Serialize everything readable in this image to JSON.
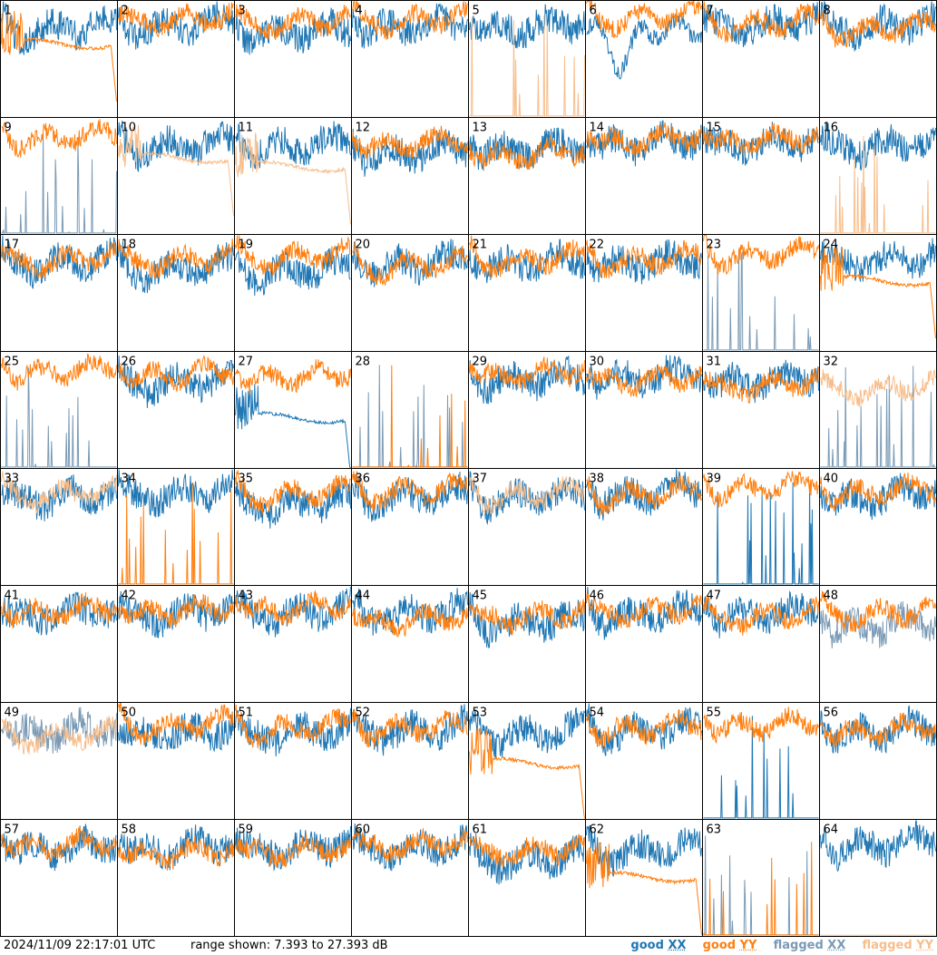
{
  "title": "",
  "footer": {
    "timestamp": "2024/11/09 22:17:01 UTC",
    "range_text": "range shown: 7.393 to 27.393 dB"
  },
  "legend": [
    {
      "status": "good",
      "pol": "XX",
      "color": "#1f77b4"
    },
    {
      "status": "good",
      "pol": "YY",
      "color": "#ff7f0e"
    },
    {
      "status": "flagged",
      "pol": "XX",
      "color": "#7a9ab5"
    },
    {
      "status": "flagged",
      "pol": "YY",
      "color": "#f7be8c"
    }
  ],
  "chart_data": {
    "type": "line",
    "layout": "8x8 small multiples",
    "ylim": [
      7.393,
      27.393
    ],
    "yunit": "dB",
    "series_styles": {
      "good_xx": "#1f77b4",
      "good_yy": "#ff7f0e",
      "flagged_xx": "#7a9ab5",
      "flagged_yy": "#f7be8c"
    },
    "panels": [
      {
        "id": 1,
        "xx": "good",
        "yy": "good",
        "xx_shape": "normal",
        "yy_shape": "smooth-drop",
        "xx_level": 21.5,
        "yy_level": 20.0
      },
      {
        "id": 2,
        "xx": "good",
        "yy": "good",
        "xx_shape": "normal",
        "yy_shape": "normal",
        "xx_level": 22.0,
        "yy_level": 23.0
      },
      {
        "id": 3,
        "xx": "good",
        "yy": "good",
        "xx_shape": "normal",
        "yy_shape": "normal",
        "xx_level": 21.0,
        "yy_level": 22.5
      },
      {
        "id": 4,
        "xx": "good",
        "yy": "good",
        "xx_shape": "normal",
        "yy_shape": "normal",
        "xx_level": 22.0,
        "yy_level": 23.0
      },
      {
        "id": 5,
        "xx": "good",
        "yy": "flagged",
        "xx_shape": "normal",
        "yy_shape": "spikes",
        "xx_level": 22.0,
        "yy_level": 7.6
      },
      {
        "id": 6,
        "xx": "good",
        "yy": "good",
        "xx_shape": "dip",
        "yy_shape": "normal",
        "xx_level": 19.5,
        "yy_level": 23.5
      },
      {
        "id": 7,
        "xx": "good",
        "yy": "good",
        "xx_shape": "normal",
        "yy_shape": "normal",
        "xx_level": 22.0,
        "yy_level": 22.5
      },
      {
        "id": 8,
        "xx": "good",
        "yy": "good",
        "xx_shape": "normal",
        "yy_shape": "normal",
        "xx_level": 22.0,
        "yy_level": 21.5
      },
      {
        "id": 9,
        "xx": "flagged",
        "yy": "good",
        "xx_shape": "spikes",
        "yy_shape": "normal",
        "xx_level": 7.6,
        "yy_level": 23.0
      },
      {
        "id": 10,
        "xx": "good",
        "yy": "flagged",
        "xx_shape": "normal",
        "yy_shape": "smooth-drop",
        "xx_level": 21.5,
        "yy_level": 20.5
      },
      {
        "id": 11,
        "xx": "good",
        "yy": "flagged",
        "xx_shape": "normal",
        "yy_shape": "smooth-drop",
        "xx_level": 21.5,
        "yy_level": 19.0
      },
      {
        "id": 12,
        "xx": "good",
        "yy": "good",
        "xx_shape": "normal",
        "yy_shape": "normal",
        "xx_level": 20.5,
        "yy_level": 22.0
      },
      {
        "id": 13,
        "xx": "good",
        "yy": "good",
        "xx_shape": "normal",
        "yy_shape": "normal",
        "xx_level": 21.0,
        "yy_level": 20.0
      },
      {
        "id": 14,
        "xx": "good",
        "yy": "good",
        "xx_shape": "normal",
        "yy_shape": "normal",
        "xx_level": 22.0,
        "yy_level": 22.5
      },
      {
        "id": 15,
        "xx": "good",
        "yy": "good",
        "xx_shape": "normal",
        "yy_shape": "normal",
        "xx_level": 22.0,
        "yy_level": 22.5
      },
      {
        "id": 16,
        "xx": "good",
        "yy": "flagged",
        "xx_shape": "normal",
        "yy_shape": "spikes",
        "xx_level": 21.5,
        "yy_level": 7.6
      },
      {
        "id": 17,
        "xx": "good",
        "yy": "good",
        "xx_shape": "normal",
        "yy_shape": "normal",
        "xx_level": 21.5,
        "yy_level": 22.0
      },
      {
        "id": 18,
        "xx": "good",
        "yy": "good",
        "xx_shape": "normal",
        "yy_shape": "normal",
        "xx_level": 20.5,
        "yy_level": 22.0
      },
      {
        "id": 19,
        "xx": "good",
        "yy": "good",
        "xx_shape": "normal",
        "yy_shape": "normal",
        "xx_level": 20.0,
        "yy_level": 22.5
      },
      {
        "id": 20,
        "xx": "good",
        "yy": "good",
        "xx_shape": "normal",
        "yy_shape": "normal",
        "xx_level": 21.5,
        "yy_level": 21.0
      },
      {
        "id": 21,
        "xx": "good",
        "yy": "good",
        "xx_shape": "normal",
        "yy_shape": "normal",
        "xx_level": 21.5,
        "yy_level": 22.0
      },
      {
        "id": 22,
        "xx": "good",
        "yy": "good",
        "xx_shape": "normal",
        "yy_shape": "normal",
        "xx_level": 21.5,
        "yy_level": 22.0
      },
      {
        "id": 23,
        "xx": "flagged",
        "yy": "good",
        "xx_shape": "spikes",
        "yy_shape": "normal",
        "xx_level": 14.0,
        "yy_level": 23.0
      },
      {
        "id": 24,
        "xx": "good",
        "yy": "good",
        "xx_shape": "normal",
        "yy_shape": "smooth-drop",
        "xx_level": 22.0,
        "yy_level": 19.5
      },
      {
        "id": 25,
        "xx": "flagged",
        "yy": "good",
        "xx_shape": "spikes",
        "yy_shape": "normal",
        "xx_level": 7.6,
        "yy_level": 23.0
      },
      {
        "id": 26,
        "xx": "good",
        "yy": "good",
        "xx_shape": "normal",
        "yy_shape": "normal",
        "xx_level": 21.0,
        "yy_level": 22.5
      },
      {
        "id": 27,
        "xx": "good",
        "yy": "good",
        "xx_shape": "smooth-drop",
        "yy_shape": "normal",
        "xx_level": 16.0,
        "yy_level": 22.0
      },
      {
        "id": 28,
        "xx": "flagged",
        "yy": "good",
        "xx_shape": "spikes",
        "yy_shape": "spikes",
        "xx_level": 7.6,
        "yy_level": 7.6
      },
      {
        "id": 29,
        "xx": "good",
        "yy": "good",
        "xx_shape": "normal",
        "yy_shape": "normal",
        "xx_level": 21.5,
        "yy_level": 22.5
      },
      {
        "id": 30,
        "xx": "good",
        "yy": "good",
        "xx_shape": "normal",
        "yy_shape": "normal",
        "xx_level": 22.0,
        "yy_level": 21.5
      },
      {
        "id": 31,
        "xx": "good",
        "yy": "good",
        "xx_shape": "normal",
        "yy_shape": "normal",
        "xx_level": 21.5,
        "yy_level": 20.5
      },
      {
        "id": 32,
        "xx": "flagged",
        "yy": "flagged",
        "xx_shape": "spikes",
        "yy_shape": "normal",
        "xx_level": 7.6,
        "yy_level": 20.0
      },
      {
        "id": 33,
        "xx": "good",
        "yy": "flagged",
        "xx_shape": "normal",
        "yy_shape": "normal",
        "xx_level": 21.5,
        "yy_level": 22.0
      },
      {
        "id": 34,
        "xx": "good",
        "yy": "good",
        "xx_shape": "normal",
        "yy_shape": "spikes",
        "xx_level": 22.0,
        "yy_level": 7.6
      },
      {
        "id": 35,
        "xx": "good",
        "yy": "good",
        "xx_shape": "normal",
        "yy_shape": "normal",
        "xx_level": 20.0,
        "yy_level": 22.0
      },
      {
        "id": 36,
        "xx": "good",
        "yy": "good",
        "xx_shape": "normal",
        "yy_shape": "normal",
        "xx_level": 21.5,
        "yy_level": 22.5
      },
      {
        "id": 37,
        "xx": "good",
        "yy": "flagged",
        "xx_shape": "normal",
        "yy_shape": "normal",
        "xx_level": 21.5,
        "yy_level": 22.0
      },
      {
        "id": 38,
        "xx": "good",
        "yy": "good",
        "xx_shape": "normal",
        "yy_shape": "normal",
        "xx_level": 22.0,
        "yy_level": 22.0
      },
      {
        "id": 39,
        "xx": "good",
        "yy": "good",
        "xx_shape": "spikes",
        "yy_shape": "normal",
        "xx_level": 7.6,
        "yy_level": 23.0
      },
      {
        "id": 40,
        "xx": "good",
        "yy": "good",
        "xx_shape": "normal",
        "yy_shape": "normal",
        "xx_level": 21.5,
        "yy_level": 22.5
      },
      {
        "id": 41,
        "xx": "good",
        "yy": "good",
        "xx_shape": "normal",
        "yy_shape": "normal",
        "xx_level": 21.5,
        "yy_level": 22.0
      },
      {
        "id": 42,
        "xx": "good",
        "yy": "good",
        "xx_shape": "normal",
        "yy_shape": "normal",
        "xx_level": 21.5,
        "yy_level": 22.0
      },
      {
        "id": 43,
        "xx": "good",
        "yy": "good",
        "xx_shape": "normal",
        "yy_shape": "normal",
        "xx_level": 21.5,
        "yy_level": 22.5
      },
      {
        "id": 44,
        "xx": "good",
        "yy": "good",
        "xx_shape": "normal",
        "yy_shape": "normal",
        "xx_level": 21.5,
        "yy_level": 20.5
      },
      {
        "id": 45,
        "xx": "good",
        "yy": "good",
        "xx_shape": "normal",
        "yy_shape": "normal",
        "xx_level": 20.0,
        "yy_level": 21.0
      },
      {
        "id": 46,
        "xx": "good",
        "yy": "good",
        "xx_shape": "normal",
        "yy_shape": "normal",
        "xx_level": 21.5,
        "yy_level": 22.0
      },
      {
        "id": 47,
        "xx": "good",
        "yy": "good",
        "xx_shape": "normal",
        "yy_shape": "normal",
        "xx_level": 21.5,
        "yy_level": 21.0
      },
      {
        "id": 48,
        "xx": "flagged",
        "yy": "good",
        "xx_shape": "normal",
        "yy_shape": "normal",
        "xx_level": 19.5,
        "yy_level": 21.5
      },
      {
        "id": 49,
        "xx": "flagged",
        "yy": "flagged",
        "xx_shape": "normal",
        "yy_shape": "normal",
        "xx_level": 21.5,
        "yy_level": 20.5
      },
      {
        "id": 50,
        "xx": "good",
        "yy": "good",
        "xx_shape": "normal",
        "yy_shape": "normal",
        "xx_level": 21.0,
        "yy_level": 22.5
      },
      {
        "id": 51,
        "xx": "good",
        "yy": "good",
        "xx_shape": "normal",
        "yy_shape": "normal",
        "xx_level": 21.0,
        "yy_level": 22.0
      },
      {
        "id": 52,
        "xx": "good",
        "yy": "good",
        "xx_shape": "normal",
        "yy_shape": "normal",
        "xx_level": 21.5,
        "yy_level": 22.0
      },
      {
        "id": 53,
        "xx": "good",
        "yy": "good",
        "xx_shape": "normal",
        "yy_shape": "smooth-drop",
        "xx_level": 21.0,
        "yy_level": 17.0
      },
      {
        "id": 54,
        "xx": "good",
        "yy": "good",
        "xx_shape": "normal",
        "yy_shape": "normal",
        "xx_level": 21.5,
        "yy_level": 22.0
      },
      {
        "id": 55,
        "xx": "good",
        "yy": "good",
        "xx_shape": "spikes",
        "yy_shape": "normal",
        "xx_level": 7.6,
        "yy_level": 22.5
      },
      {
        "id": 56,
        "xx": "good",
        "yy": "good",
        "xx_shape": "normal",
        "yy_shape": "normal",
        "xx_level": 21.5,
        "yy_level": 21.5
      },
      {
        "id": 57,
        "xx": "good",
        "yy": "good",
        "xx_shape": "normal",
        "yy_shape": "normal",
        "xx_level": 21.5,
        "yy_level": 22.0
      },
      {
        "id": 58,
        "xx": "good",
        "yy": "good",
        "xx_shape": "normal",
        "yy_shape": "normal",
        "xx_level": 21.5,
        "yy_level": 20.5
      },
      {
        "id": 59,
        "xx": "good",
        "yy": "good",
        "xx_shape": "normal",
        "yy_shape": "normal",
        "xx_level": 21.5,
        "yy_level": 21.0
      },
      {
        "id": 60,
        "xx": "good",
        "yy": "good",
        "xx_shape": "normal",
        "yy_shape": "normal",
        "xx_level": 21.5,
        "yy_level": 22.0
      },
      {
        "id": 61,
        "xx": "good",
        "yy": "good",
        "xx_shape": "normal",
        "yy_shape": "normal",
        "xx_level": 19.5,
        "yy_level": 21.0
      },
      {
        "id": 62,
        "xx": "good",
        "yy": "good",
        "xx_shape": "normal",
        "yy_shape": "smooth-drop",
        "xx_level": 21.0,
        "yy_level": 17.5
      },
      {
        "id": 63,
        "xx": "flagged",
        "yy": "good",
        "xx_shape": "spikes",
        "yy_shape": "spikes",
        "xx_level": 7.6,
        "yy_level": 7.6
      },
      {
        "id": 64,
        "xx": "good",
        "yy": "flagged",
        "xx_shape": "normal",
        "yy_shape": "none",
        "xx_level": 22.0,
        "yy_level": 7.4
      }
    ]
  }
}
